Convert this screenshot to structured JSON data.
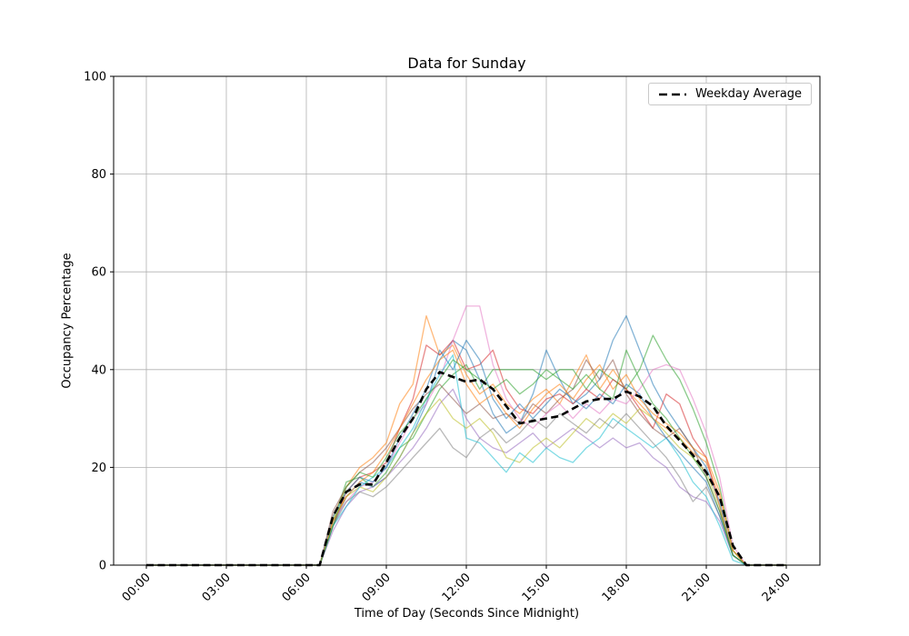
{
  "chart_data": {
    "type": "line",
    "title": "Data for Sunday",
    "xlabel": "Time of Day (Seconds Since Midnight)",
    "ylabel": "Occupancy Percentage",
    "x_tick_labels": [
      "00:00",
      "03:00",
      "06:00",
      "09:00",
      "12:00",
      "15:00",
      "18:00",
      "21:00",
      "24:00"
    ],
    "x_tick_hours": [
      0,
      3,
      6,
      9,
      12,
      15,
      18,
      21,
      24
    ],
    "y_tick_labels": [
      "0",
      "20",
      "40",
      "60",
      "80",
      "100"
    ],
    "y_ticks": [
      0,
      20,
      40,
      60,
      80,
      100
    ],
    "ylim": [
      0,
      100
    ],
    "xlim_hours": [
      0,
      24
    ],
    "grid": true,
    "grid_color": "#b0b0b0",
    "axes_color": "#000000",
    "background_color": "#ffffff",
    "legend": {
      "position": "upper right",
      "entries": [
        {
          "label": "Weekday Average",
          "style": "dashed",
          "color": "#000000"
        }
      ]
    },
    "time_step_hours": 0.5,
    "average": {
      "name": "Weekday Average",
      "color": "#000000",
      "dashed": true,
      "line_width": 2.6,
      "values": [
        0,
        0,
        0,
        0,
        0,
        0,
        0,
        0,
        0,
        0,
        0,
        0,
        0,
        0,
        10,
        15,
        16.5,
        16.5,
        21,
        26,
        30,
        36,
        39.5,
        38.5,
        37.5,
        38,
        36,
        32.5,
        29,
        29.5,
        30,
        30.5,
        32,
        33.5,
        34,
        34,
        35.5,
        34.5,
        32.5,
        28.5,
        25.5,
        22.5,
        19,
        14,
        4,
        0,
        0,
        0,
        0
      ]
    },
    "series_opacity": 0.55,
    "series_line_width": 1.3,
    "series": [
      {
        "color": "#1f77b4",
        "values": [
          0,
          0,
          0,
          0,
          0,
          0,
          0,
          0,
          0,
          0,
          0,
          0,
          0,
          0,
          8,
          14,
          17,
          16,
          18,
          22,
          27,
          33,
          42,
          46,
          44,
          38,
          31,
          27,
          29,
          35,
          44,
          38,
          33,
          35,
          38,
          46,
          51,
          44,
          37,
          32,
          28,
          24,
          20,
          13,
          2,
          0,
          0,
          0,
          0
        ]
      },
      {
        "color": "#ff7f0e",
        "values": [
          0,
          0,
          0,
          0,
          0,
          0,
          0,
          0,
          0,
          0,
          0,
          0,
          0,
          0,
          10,
          16,
          20,
          22,
          25,
          33,
          37,
          51,
          43,
          45,
          39,
          35,
          37,
          33,
          31,
          34,
          36,
          33,
          38,
          43,
          36,
          40,
          36,
          33,
          30,
          28,
          26,
          23,
          21,
          14,
          3,
          0,
          0,
          0,
          0
        ]
      },
      {
        "color": "#2ca02c",
        "values": [
          0,
          0,
          0,
          0,
          0,
          0,
          0,
          0,
          0,
          0,
          0,
          0,
          0,
          0,
          9,
          17,
          18,
          16,
          19,
          24,
          26,
          31,
          36,
          39,
          41,
          36,
          40,
          40,
          40,
          40,
          38,
          40,
          40,
          36,
          40,
          38,
          36,
          40,
          47,
          42,
          38,
          32,
          25,
          16,
          3,
          0,
          0,
          0,
          0
        ]
      },
      {
        "color": "#d62728",
        "values": [
          0,
          0,
          0,
          0,
          0,
          0,
          0,
          0,
          0,
          0,
          0,
          0,
          0,
          0,
          8,
          15,
          18,
          19,
          21,
          28,
          34,
          45,
          43,
          46,
          40,
          41,
          44,
          36,
          32,
          31,
          34,
          35,
          33,
          36,
          34,
          38,
          36,
          32,
          28,
          35,
          33,
          26,
          22,
          12,
          2,
          0,
          0,
          0,
          0
        ]
      },
      {
        "color": "#9467bd",
        "values": [
          0,
          0,
          0,
          0,
          0,
          0,
          0,
          0,
          0,
          0,
          0,
          0,
          0,
          0,
          7,
          12,
          15,
          16,
          18,
          21,
          24,
          28,
          33,
          36,
          30,
          26,
          24,
          23,
          25,
          27,
          24,
          26,
          28,
          26,
          24,
          26,
          24,
          25,
          22,
          20,
          16,
          14,
          13,
          9,
          2,
          0,
          0,
          0,
          0
        ]
      },
      {
        "color": "#8c564b",
        "values": [
          0,
          0,
          0,
          0,
          0,
          0,
          0,
          0,
          0,
          0,
          0,
          0,
          0,
          0,
          11,
          16,
          19,
          21,
          24,
          28,
          32,
          35,
          37,
          34,
          31,
          33,
          30,
          31,
          29,
          33,
          31,
          34,
          36,
          42,
          38,
          42,
          35,
          31,
          28,
          26,
          28,
          24,
          18,
          11,
          2,
          0,
          0,
          0,
          0
        ]
      },
      {
        "color": "#e377c2",
        "values": [
          0,
          0,
          0,
          0,
          0,
          0,
          0,
          0,
          0,
          0,
          0,
          0,
          0,
          0,
          9,
          13,
          16,
          17,
          20,
          25,
          30,
          33,
          38,
          46,
          53,
          53,
          41,
          34,
          30,
          28,
          31,
          33,
          30,
          33,
          31,
          34,
          33,
          36,
          40,
          41,
          40,
          34,
          27,
          18,
          4,
          0,
          0,
          0,
          0
        ]
      },
      {
        "color": "#7f7f7f",
        "values": [
          0,
          0,
          0,
          0,
          0,
          0,
          0,
          0,
          0,
          0,
          0,
          0,
          0,
          0,
          8,
          13,
          15,
          14,
          16,
          19,
          22,
          25,
          28,
          24,
          22,
          26,
          28,
          25,
          27,
          30,
          28,
          31,
          29,
          27,
          30,
          28,
          31,
          28,
          25,
          22,
          18,
          13,
          16,
          10,
          2,
          0,
          0,
          0,
          0
        ]
      },
      {
        "color": "#bcbd22",
        "values": [
          0,
          0,
          0,
          0,
          0,
          0,
          0,
          0,
          0,
          0,
          0,
          0,
          0,
          0,
          9,
          14,
          16,
          15,
          18,
          22,
          27,
          31,
          34,
          30,
          28,
          30,
          27,
          22,
          21,
          24,
          26,
          24,
          27,
          30,
          28,
          31,
          29,
          32,
          30,
          27,
          24,
          22,
          19,
          12,
          2,
          0,
          0,
          0,
          0
        ]
      },
      {
        "color": "#17becf",
        "values": [
          0,
          0,
          0,
          0,
          0,
          0,
          0,
          0,
          0,
          0,
          0,
          0,
          0,
          0,
          8,
          12,
          16,
          18,
          20,
          24,
          28,
          34,
          39,
          43,
          26,
          25,
          22,
          19,
          23,
          21,
          24,
          22,
          21,
          24,
          26,
          30,
          28,
          26,
          24,
          26,
          22,
          17,
          14,
          8,
          1,
          0,
          0,
          0,
          0
        ]
      },
      {
        "color": "#1f77b4",
        "values": [
          0,
          0,
          0,
          0,
          0,
          0,
          0,
          0,
          0,
          0,
          0,
          0,
          0,
          0,
          10,
          15,
          18,
          17,
          20,
          26,
          31,
          36,
          44,
          40,
          46,
          42,
          34,
          30,
          33,
          30,
          33,
          36,
          34,
          32,
          35,
          33,
          37,
          35,
          30,
          26,
          23,
          20,
          17,
          10,
          2,
          0,
          0,
          0,
          0
        ]
      },
      {
        "color": "#ff7f0e",
        "values": [
          0,
          0,
          0,
          0,
          0,
          0,
          0,
          0,
          0,
          0,
          0,
          0,
          0,
          0,
          9,
          14,
          17,
          19,
          23,
          28,
          33,
          38,
          42,
          44,
          37,
          33,
          35,
          31,
          28,
          32,
          35,
          37,
          34,
          38,
          41,
          36,
          39,
          34,
          31,
          29,
          27,
          24,
          22,
          15,
          3,
          0,
          0,
          0,
          0
        ]
      },
      {
        "color": "#2ca02c",
        "values": [
          0,
          0,
          0,
          0,
          0,
          0,
          0,
          0,
          0,
          0,
          0,
          0,
          0,
          0,
          8,
          16,
          19,
          18,
          22,
          27,
          30,
          34,
          38,
          42,
          40,
          38,
          36,
          38,
          35,
          37,
          40,
          38,
          36,
          39,
          36,
          34,
          44,
          38,
          33,
          30,
          26,
          22,
          18,
          11,
          2,
          0,
          0,
          0,
          0
        ]
      }
    ]
  }
}
